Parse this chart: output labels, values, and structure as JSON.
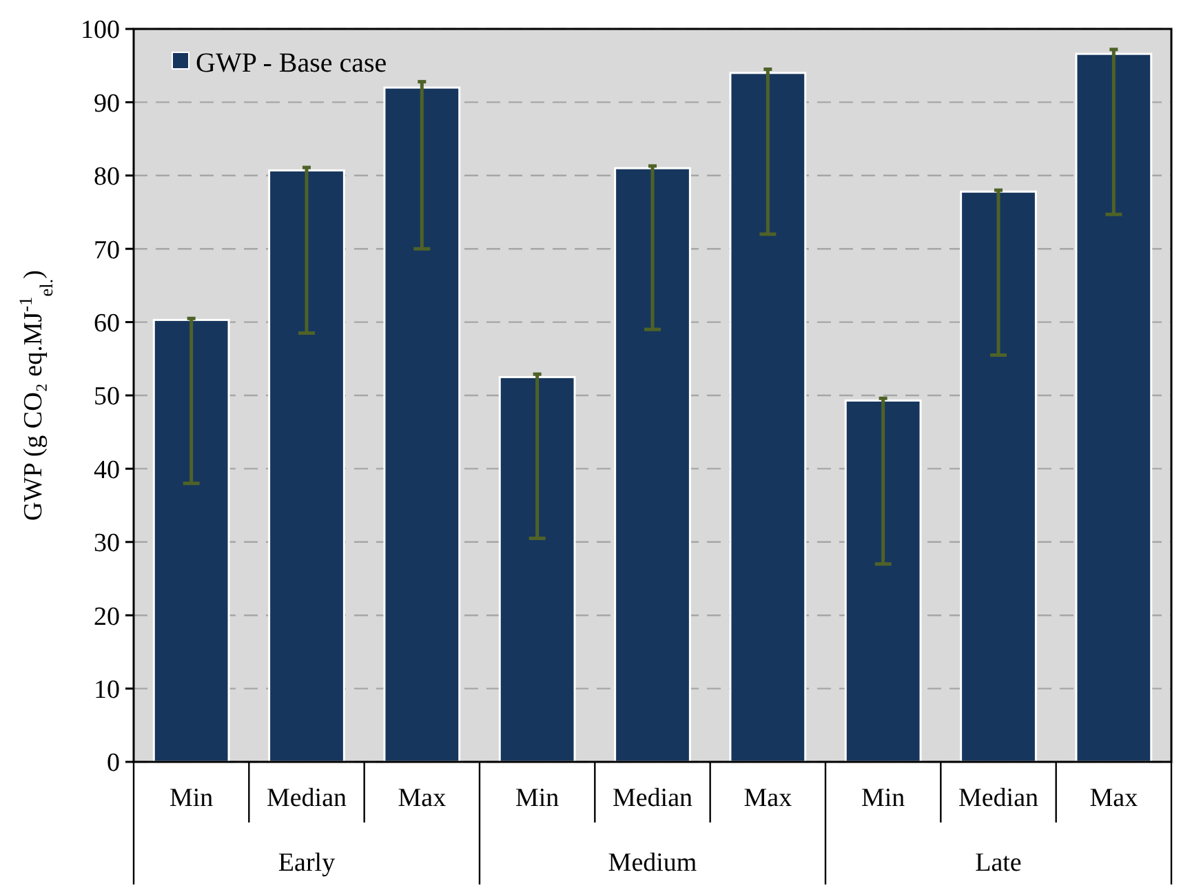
{
  "chart_data": {
    "type": "bar",
    "ylabel": "GWP (g CO₂ eq.MJ$^{-1}$$_{el.}$)",
    "categories": [
      "Min",
      "Median",
      "Max",
      "Min",
      "Median",
      "Max",
      "Min",
      "Median",
      "Max"
    ],
    "series": [
      {
        "name": "GWP - Base case",
        "color": "#17365d",
        "values": [
          60.3,
          80.7,
          92,
          52.5,
          81,
          94,
          49.3,
          77.8,
          96.6
        ],
        "errors": [
          [
            38,
            60.5
          ],
          [
            58.5,
            81.1
          ],
          [
            70,
            92.8
          ],
          [
            30.5,
            52.9
          ],
          [
            59,
            81.3
          ],
          [
            72,
            94.5
          ],
          [
            27,
            49.6
          ],
          [
            55.5,
            78
          ],
          [
            74.7,
            97.2
          ]
        ]
      }
    ],
    "annotations": [
      "Early",
      "Medium",
      "Late"
    ],
    "ylim": [
      0,
      100
    ],
    "yticks": [
      0,
      10,
      20,
      30,
      40,
      50,
      60,
      70,
      80,
      90,
      100
    ],
    "grid": "y",
    "legend": "top left"
  }
}
